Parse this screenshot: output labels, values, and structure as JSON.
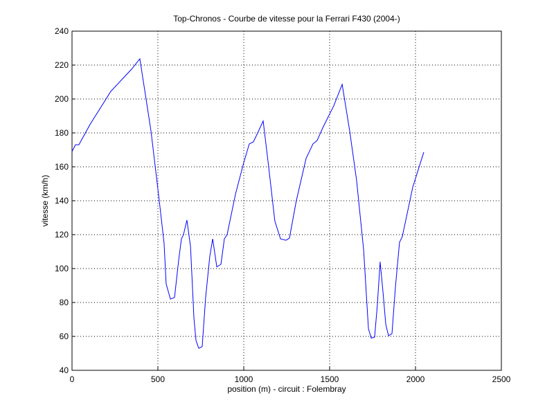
{
  "chart_data": {
    "type": "line",
    "title": "Top-Chronos - Courbe de vitesse pour la Ferrari F430 (2004-)",
    "x_label": "position (m) - circuit : Folembray",
    "y_label": "vitesse (km/h)",
    "x": [
      0,
      20,
      40,
      105,
      226,
      347,
      395,
      460,
      508,
      536,
      548,
      573,
      597,
      621,
      637,
      649,
      669,
      690,
      710,
      722,
      738,
      758,
      778,
      802,
      819,
      843,
      867,
      887,
      903,
      952,
      1000,
      1032,
      1056,
      1081,
      1113,
      1145,
      1181,
      1214,
      1246,
      1266,
      1306,
      1363,
      1403,
      1427,
      1460,
      1524,
      1573,
      1617,
      1657,
      1698,
      1726,
      1742,
      1762,
      1778,
      1794,
      1810,
      1827,
      1843,
      1863,
      1883,
      1907,
      1923,
      1984,
      2048
    ],
    "series": [
      {
        "name": "vitesse",
        "color": "#0000ff",
        "values": [
          169,
          173,
          173,
          185,
          204.5,
          217.6,
          223.7,
          181,
          140,
          115,
          91,
          82,
          83,
          105,
          117.5,
          120,
          128.6,
          113,
          70.6,
          57.5,
          53,
          54,
          83,
          107,
          117.5,
          101,
          102.5,
          117.5,
          120,
          144,
          162.5,
          173.5,
          174.7,
          180,
          187,
          160,
          128,
          117.5,
          116.7,
          118,
          140,
          165,
          173.5,
          175.5,
          183,
          196,
          208.6,
          181,
          152,
          111,
          64.5,
          59,
          59.6,
          78.8,
          104,
          87,
          67,
          60.4,
          61.6,
          89,
          115.5,
          118.8,
          148,
          168.6
        ]
      }
    ],
    "xlim": [
      0,
      2500
    ],
    "xticks": [
      0,
      500,
      1000,
      1500,
      2000,
      2500
    ],
    "ylim": [
      40,
      240
    ],
    "yticks": [
      40,
      60,
      80,
      100,
      120,
      140,
      160,
      180,
      200,
      220,
      240
    ],
    "grid": true
  }
}
